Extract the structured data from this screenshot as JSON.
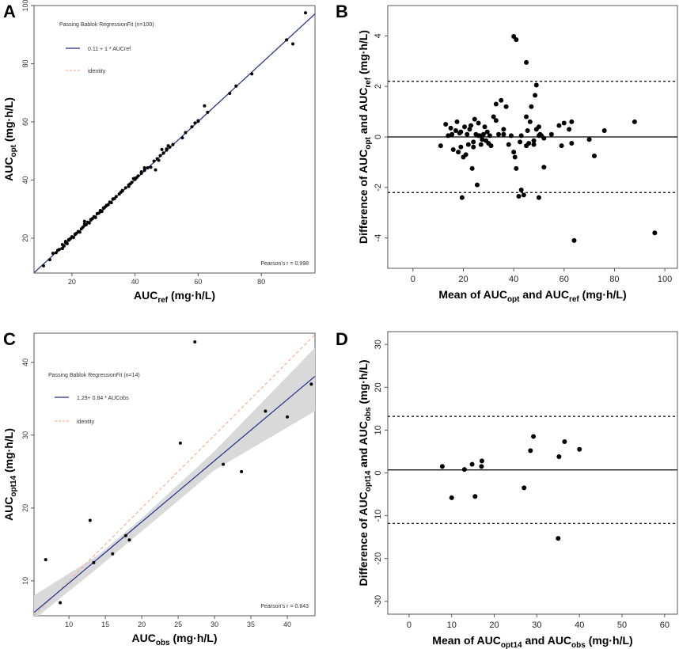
{
  "figure": {
    "colors": {
      "regression": "#1f2f8f",
      "identity": "#f4a47a",
      "ci_band": "#d9d9d9",
      "points": "#000000"
    }
  },
  "chart_data": [
    {
      "panel": "A",
      "type": "scatter",
      "title": "Passing Bablok RegressionFit (n=100)",
      "legend": [
        {
          "label": "0.11 + 1 * AUCref",
          "style": "solid-line"
        },
        {
          "label": "identity",
          "style": "dashed-line"
        }
      ],
      "xlabel": "AUC",
      "xlabel_sub": "ref",
      "xlabel_unit": " (mg·h/L)",
      "ylabel": "AUC",
      "ylabel_sub": "opt",
      "ylabel_unit": " (mg·h/L)",
      "xlim": [
        8,
        97
      ],
      "ylim": [
        8,
        100
      ],
      "xticks": [
        20,
        40,
        60,
        80
      ],
      "yticks": [
        20,
        40,
        60,
        80,
        100
      ],
      "annotation": "Pearson's r = 0.998",
      "regression": {
        "intercept": 0.11,
        "slope": 1
      },
      "x": [
        11,
        13,
        14,
        15,
        15.5,
        16,
        17,
        17.5,
        18,
        18.5,
        19,
        19.5,
        20,
        20.5,
        21,
        21.5,
        22,
        22.5,
        23,
        23.5,
        24,
        24.5,
        25,
        25.5,
        26,
        26.5,
        27,
        27.5,
        28,
        28.5,
        29,
        29.5,
        30,
        30.5,
        31,
        31.5,
        32,
        32.5,
        33,
        33.5,
        34,
        35,
        35.5,
        36,
        37,
        38,
        38.5,
        39,
        39.5,
        40,
        40.5,
        41,
        42,
        42,
        43,
        44,
        46,
        46.5,
        47,
        47.5,
        48,
        48.5,
        49,
        50,
        50.5,
        51,
        52,
        55,
        58,
        59,
        60,
        62,
        63,
        70,
        72,
        77,
        88,
        90,
        94,
        17,
        19,
        21,
        24,
        27,
        29,
        31,
        33,
        36,
        40,
        45,
        49,
        56,
        60,
        38,
        43,
        24,
        26,
        50,
        30,
        18
      ],
      "y": [
        10.5,
        12.6,
        14.8,
        15,
        15.8,
        16.1,
        17.8,
        17.3,
        18.5,
        18.1,
        19.3,
        19.8,
        20.5,
        20.2,
        21.4,
        21.7,
        22.3,
        22.1,
        23.2,
        23.8,
        24.4,
        24.6,
        25.5,
        25.2,
        26.2,
        26.7,
        27.3,
        27.1,
        28.4,
        28.6,
        29.5,
        29.2,
        30.4,
        30.7,
        31.3,
        31.5,
        32.4,
        32.2,
        33.5,
        33.6,
        34.3,
        35.2,
        35.8,
        36.4,
        37.3,
        38.3,
        38.7,
        39.2,
        40.5,
        40.2,
        40.8,
        41.4,
        42.3,
        42.8,
        43.3,
        44.2,
        46.5,
        43.5,
        47.3,
        46.8,
        48.4,
        50.5,
        49.3,
        50.3,
        51.8,
        51.3,
        52.2,
        54.5,
        58.3,
        59.6,
        60.2,
        65.5,
        63.3,
        69.8,
        72.3,
        76.5,
        88.2,
        86.8,
        97.5,
        16.4,
        19.5,
        21.2,
        24.8,
        27.4,
        29.1,
        31.2,
        33.4,
        36.2,
        40.6,
        44.4,
        49.2,
        56.3,
        60.4,
        37.8,
        44.2,
        25.8,
        26.4,
        50.7,
        30.2,
        18.9
      ]
    },
    {
      "panel": "B",
      "type": "scatter",
      "xlabel": "Mean of AUC",
      "xlabel_sub1": "opt",
      "xlabel_mid": " and AUC",
      "xlabel_sub2": "ref",
      "xlabel_unit": " (mg·h/L)",
      "ylabel": "Difference of AUC",
      "ylabel_sub1": "opt",
      "ylabel_mid": " and AUC",
      "ylabel_sub2": "ref",
      "ylabel_unit": " (mg·h/L)",
      "xlim": [
        -10,
        105
      ],
      "ylim": [
        -5.2,
        5.2
      ],
      "xticks": [
        0,
        20,
        40,
        60,
        80,
        100
      ],
      "yticks": [
        -4,
        -2,
        0,
        2,
        4
      ],
      "mean_line": 0,
      "loa": [
        2.2,
        -2.2
      ],
      "x": [
        11,
        13,
        14,
        15,
        15.5,
        16,
        17,
        17.5,
        18,
        18.5,
        19,
        19.5,
        20,
        20.5,
        21,
        21.5,
        22,
        22.5,
        23,
        23.5,
        24,
        24.5,
        25,
        25.5,
        26,
        26.5,
        27,
        27.5,
        28,
        28.5,
        29,
        29.5,
        30,
        30.5,
        31,
        32,
        33,
        34,
        35,
        36,
        37,
        38,
        39,
        40,
        40.5,
        41,
        42,
        42.5,
        43,
        44,
        45,
        45.5,
        46,
        46.5,
        47,
        48,
        48.5,
        49,
        50,
        50.5,
        51,
        52,
        55,
        58,
        59,
        60,
        62,
        63,
        64,
        70,
        72,
        76,
        88,
        96,
        40,
        43,
        45,
        49,
        26,
        19,
        24,
        33,
        36,
        45,
        50,
        52,
        63,
        50,
        41,
        48
      ],
      "y": [
        -0.35,
        0.5,
        0.05,
        0.35,
        0.1,
        -0.5,
        0.25,
        0.6,
        -0.6,
        0.15,
        -0.4,
        -2.4,
        -0.8,
        0.4,
        -0.7,
        0.1,
        -0.3,
        0.3,
        0.45,
        -1.25,
        -0.2,
        0.7,
        0.1,
        -1.9,
        0.55,
        0.05,
        -0.3,
        -0.1,
        0.1,
        0.4,
        -0.15,
        0.2,
        -0.25,
        0.05,
        -0.35,
        0.8,
        1.3,
        0.1,
        1.45,
        0.3,
        1.2,
        -0.3,
        0.05,
        3.98,
        -0.8,
        -1.25,
        -2.35,
        -0.2,
        -2.1,
        -2.3,
        2.95,
        0.25,
        -0.25,
        0.6,
        1.2,
        -0.3,
        1.65,
        2.05,
        -2.4,
        0.1,
        0.05,
        -1.2,
        0.1,
        0.45,
        -0.35,
        0.55,
        0.3,
        0.6,
        -4.1,
        -0.1,
        -0.75,
        0.25,
        0.6,
        -3.8,
        -0.6,
        0.05,
        0.8,
        0.3,
        0.05,
        0.2,
        -0.4,
        0.65,
        0.1,
        -0.35,
        0.05,
        -0.05,
        -0.25,
        0.4,
        3.85,
        -0.15
      ]
    },
    {
      "panel": "C",
      "type": "scatter",
      "title": "Passing Bablok RegressionFit (n=14)",
      "legend": [
        {
          "label": "1.29+ 0.84 * AUCobs",
          "style": "solid-line"
        },
        {
          "label": "identity",
          "style": "dashed-line"
        }
      ],
      "xlabel": "AUC",
      "xlabel_sub": "obs",
      "xlabel_unit": " (mg·h/L)",
      "ylabel": "AUC",
      "ylabel_sub": "opt14",
      "ylabel_unit": " (mg·h/L)",
      "xlim": [
        5.2,
        43.8
      ],
      "ylim": [
        5.2,
        44
      ],
      "xticks": [
        10,
        15,
        20,
        25,
        30,
        35,
        40
      ],
      "yticks": [
        10,
        20,
        30,
        40
      ],
      "annotation": "Pearson's r = 0.843",
      "regression": {
        "intercept": 1.29,
        "slope": 0.84
      },
      "ci_band": {
        "x": [
          5.2,
          14,
          20,
          30,
          43.8
        ],
        "lower": [
          4.7,
          11.8,
          16.8,
          25.2,
          33.3
        ],
        "upper": [
          8.0,
          13.5,
          18.6,
          27.8,
          42.0
        ]
      },
      "x": [
        6.8,
        8.8,
        12.9,
        13.4,
        16.0,
        17.8,
        18.3,
        25.3,
        27.3,
        31.2,
        33.7,
        37.0,
        40.0,
        43.3
      ],
      "y": [
        12.9,
        7.0,
        18.3,
        12.5,
        13.7,
        16.2,
        15.6,
        28.9,
        42.8,
        26.0,
        25.0,
        33.3,
        32.5,
        37.0
      ]
    },
    {
      "panel": "D",
      "type": "scatter",
      "xlabel": "Mean of AUC",
      "xlabel_sub1": "opt14",
      "xlabel_mid": " and AUC",
      "xlabel_sub2": "obs",
      "xlabel_unit": " (mg·h/L)",
      "ylabel": "Difference of AUC",
      "ylabel_sub1": "opt14",
      "ylabel_mid": " and AUC",
      "ylabel_sub2": "obs",
      "ylabel_unit": " (mg·h/L)",
      "xlim": [
        -5,
        63
      ],
      "ylim": [
        -33,
        33
      ],
      "xticks": [
        0,
        10,
        20,
        30,
        40,
        50,
        60
      ],
      "yticks": [
        -30,
        -20,
        -10,
        0,
        10,
        20,
        30
      ],
      "mean_line": 0.7,
      "loa": [
        13.2,
        -11.8
      ],
      "x": [
        7.8,
        10.0,
        13.0,
        14.8,
        15.5,
        17.0,
        17.1,
        27.0,
        28.5,
        29.2,
        35.0,
        35.2,
        36.5,
        40.0
      ],
      "y": [
        1.5,
        -5.8,
        0.8,
        2.0,
        -5.5,
        1.5,
        2.8,
        -3.5,
        5.2,
        8.5,
        -15.3,
        3.8,
        7.3,
        5.5
      ]
    }
  ]
}
